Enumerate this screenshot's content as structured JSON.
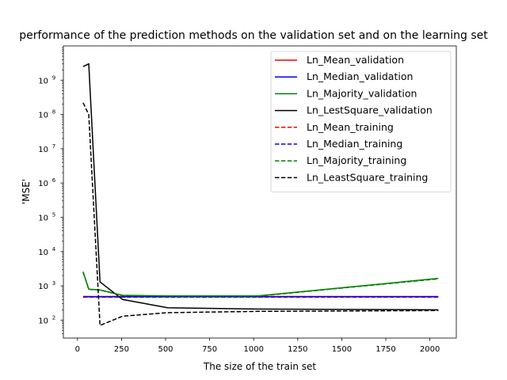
{
  "chart_data": {
    "type": "line",
    "title": "performance of the prediction methods on the validation set and on the learning set",
    "xlabel": "The size of the train set",
    "ylabel": "'MSE'",
    "xlim": [
      -80,
      2150
    ],
    "ylim": [
      30,
      10000000000
    ],
    "yscale": "log",
    "grid": false,
    "legend_position": "top-right",
    "x_ticks": [
      0,
      250,
      500,
      750,
      1000,
      1250,
      1500,
      1750,
      2000
    ],
    "x_tick_labels": [
      "0",
      "250",
      "500",
      "750",
      "1000",
      "1250",
      "1500",
      "1750",
      "2000"
    ],
    "y_ticks": [
      100,
      1000,
      10000,
      100000,
      1000000,
      10000000,
      100000000,
      1000000000
    ],
    "y_tick_labels": [
      {
        "base": "10",
        "exp": "2"
      },
      {
        "base": "10",
        "exp": "3"
      },
      {
        "base": "10",
        "exp": "4"
      },
      {
        "base": "10",
        "exp": "5"
      },
      {
        "base": "10",
        "exp": "6"
      },
      {
        "base": "10",
        "exp": "7"
      },
      {
        "base": "10",
        "exp": "8"
      },
      {
        "base": "10",
        "exp": "9"
      }
    ],
    "series": [
      {
        "name": "Ln_Mean_validation",
        "color": "#ff0000",
        "dash": "solid",
        "x": [
          32,
          64,
          128,
          256,
          512,
          1024,
          2048
        ],
        "y": [
          490,
          490,
          490,
          490,
          490,
          490,
          490
        ]
      },
      {
        "name": "Ln_Median_validation",
        "color": "#0000ff",
        "dash": "solid",
        "x": [
          32,
          64,
          128,
          256,
          512,
          1024,
          2048
        ],
        "y": [
          480,
          480,
          480,
          480,
          480,
          480,
          480
        ]
      },
      {
        "name": "Ln_Majority_validation",
        "color": "#008000",
        "dash": "solid",
        "x": [
          32,
          64,
          128,
          256,
          512,
          1024,
          2048
        ],
        "y": [
          2600,
          800,
          760,
          530,
          510,
          510,
          1650
        ]
      },
      {
        "name": "Ln_LestSquare_validation",
        "color": "#000000",
        "dash": "solid",
        "x": [
          32,
          64,
          128,
          256,
          512,
          1024,
          2048
        ],
        "y": [
          2500000000,
          3000000000,
          1300,
          400,
          230,
          210,
          200
        ]
      },
      {
        "name": "Ln_Mean_training",
        "color": "#ff0000",
        "dash": "dashed",
        "x": [
          32,
          64,
          128,
          256,
          512,
          1024,
          2048
        ],
        "y": [
          490,
          480,
          480,
          480,
          480,
          480,
          480
        ]
      },
      {
        "name": "Ln_Median_training",
        "color": "#0000ff",
        "dash": "dashed",
        "x": [
          32,
          64,
          128,
          256,
          512,
          1024,
          2048
        ],
        "y": [
          470,
          470,
          470,
          470,
          470,
          470,
          470
        ]
      },
      {
        "name": "Ln_Majority_training",
        "color": "#008000",
        "dash": "dashed",
        "x": [
          32,
          64,
          128,
          256,
          512,
          1024,
          2048
        ],
        "y": [
          2500,
          790,
          750,
          520,
          500,
          500,
          1600
        ]
      },
      {
        "name": "Ln_LeastSquare_training",
        "color": "#000000",
        "dash": "dashed",
        "x": [
          32,
          64,
          128,
          256,
          512,
          1024,
          2048
        ],
        "y": [
          220000000,
          100000000,
          70,
          130,
          165,
          180,
          190
        ]
      }
    ]
  }
}
